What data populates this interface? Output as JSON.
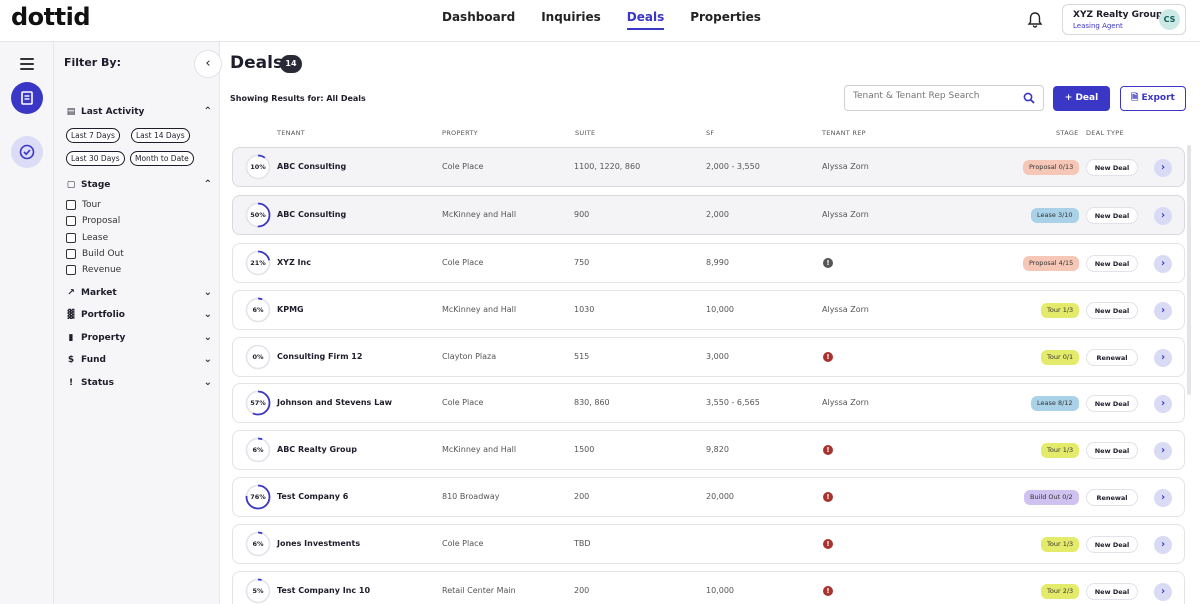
{
  "app": {
    "logo": "dottid"
  },
  "nav": [
    "Dashboard",
    "Inquiries",
    "Deals",
    "Properties"
  ],
  "account": {
    "org": "XYZ Realty Group",
    "role": "Leasing Agent",
    "initials": "CS"
  },
  "filters": {
    "title": "Filter By:",
    "last_activity": {
      "label": "Last Activity",
      "chips": [
        "Last 7 Days",
        "Last 14 Days",
        "Last 30 Days",
        "Month to Date"
      ]
    },
    "stage": {
      "label": "Stage",
      "options": [
        "Tour",
        "Proposal",
        "Lease",
        "Build Out",
        "Revenue"
      ]
    },
    "collapsed": [
      "Market",
      "Portfolio",
      "Property",
      "Fund",
      "Status"
    ]
  },
  "page": {
    "title": "Deals",
    "count": "14",
    "showing": "Showing Results for: All Deals"
  },
  "search": {
    "placeholder": "Tenant & Tenant Rep Search"
  },
  "actions": {
    "add_deal": "+ Deal",
    "export": "Export"
  },
  "columns": {
    "tenant": "TENANT",
    "property": "PROPERTY",
    "suite": "SUITE",
    "sf": "SF",
    "rep": "TENANT REP",
    "stage": "STAGE",
    "type": "DEAL TYPE"
  },
  "colors": {
    "accent": "#3a36c6",
    "alert": "#a8322e",
    "proposal": "#f6c7b6",
    "lease": "#a9d2e8",
    "tour": "#e4ea6a",
    "buildout": "#cfc1f0"
  },
  "deals": [
    {
      "pct": "10%",
      "progress": 0.1,
      "tenant": "ABC Consulting",
      "property": "Cole Place",
      "suite": "1100, 1220, 860",
      "sf": "2,000 - 3,550",
      "rep": "Alyssa Zorn",
      "stage": "Proposal 0/13",
      "stage_kind": "proposal",
      "type": "New Deal",
      "highlight": true
    },
    {
      "pct": "50%",
      "progress": 0.5,
      "tenant": "ABC Consulting",
      "property": "McKinney and Hall",
      "suite": "900",
      "sf": "2,000",
      "rep": "Alyssa Zorn",
      "stage": "Lease 3/10",
      "stage_kind": "lease",
      "type": "New Deal",
      "highlight": true
    },
    {
      "pct": "21%",
      "progress": 0.21,
      "tenant": "XYZ Inc",
      "property": "Cole Place",
      "suite": "750",
      "sf": "8,990",
      "rep": "",
      "alert_tone": "gray",
      "stage": "Proposal 4/15",
      "stage_kind": "proposal",
      "type": "New Deal"
    },
    {
      "pct": "6%",
      "progress": 0.06,
      "tenant": "KPMG",
      "property": "McKinney and Hall",
      "suite": "1030",
      "sf": "10,000",
      "rep": "Alyssa Zorn",
      "stage": "Tour 1/3",
      "stage_kind": "tour",
      "type": "New Deal"
    },
    {
      "pct": "0%",
      "progress": 0.0,
      "tenant": "Consulting Firm 12",
      "property": "Clayton Plaza",
      "suite": "515",
      "sf": "3,000",
      "rep": "",
      "alert_tone": "red",
      "stage": "Tour 0/1",
      "stage_kind": "tour",
      "type": "Renewal"
    },
    {
      "pct": "57%",
      "progress": 0.57,
      "tenant": "Johnson and Stevens Law",
      "property": "Cole Place",
      "suite": "830, 860",
      "sf": "3,550 - 6,565",
      "rep": "Alyssa Zorn",
      "stage": "Lease 8/12",
      "stage_kind": "lease",
      "type": "New Deal"
    },
    {
      "pct": "6%",
      "progress": 0.06,
      "tenant": "ABC Realty Group",
      "property": "McKinney and Hall",
      "suite": "1500",
      "sf": "9,820",
      "rep": "",
      "alert_tone": "red",
      "stage": "Tour 1/3",
      "stage_kind": "tour",
      "type": "New Deal"
    },
    {
      "pct": "76%",
      "progress": 0.76,
      "tenant": "Test Company 6",
      "property": "810 Broadway",
      "suite": "200",
      "sf": "20,000",
      "rep": "",
      "alert_tone": "red",
      "stage": "Build Out 0/2",
      "stage_kind": "buildout",
      "type": "Renewal"
    },
    {
      "pct": "6%",
      "progress": 0.06,
      "tenant": "Jones Investments",
      "property": "Cole Place",
      "suite": "TBD",
      "sf": "",
      "rep": "",
      "alert_tone": "red",
      "stage": "Tour 1/3",
      "stage_kind": "tour",
      "type": "New Deal"
    },
    {
      "pct": "5%",
      "progress": 0.05,
      "tenant": "Test Company Inc 10",
      "property": "Retail Center Main",
      "suite": "200",
      "sf": "10,000",
      "rep": "",
      "alert_tone": "red",
      "stage": "Tour 2/3",
      "stage_kind": "tour",
      "type": "New Deal"
    }
  ]
}
